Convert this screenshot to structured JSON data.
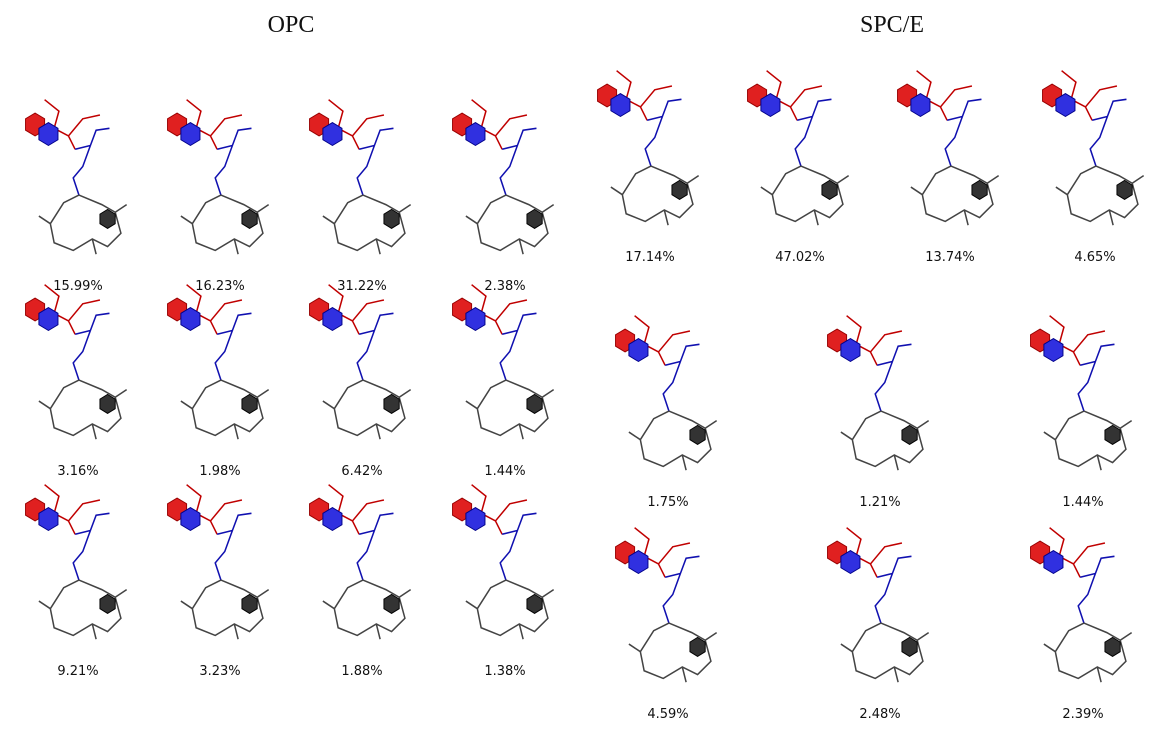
{
  "panels": [
    {
      "title": "OPC",
      "labels": [
        "15.99%",
        "16.23%",
        "31.22%",
        "2.38%",
        "3.16%",
        "1.98%",
        "6.42%",
        "1.44%",
        "9.21%",
        "3.23%",
        "1.88%",
        "1.38%"
      ]
    },
    {
      "title": "SPC/E",
      "labels": [
        "17.14%",
        "47.02%",
        "13.74%",
        "4.65%",
        "1.75%",
        "1.21%",
        "1.44%",
        "4.59%",
        "2.48%",
        "2.39%"
      ]
    }
  ]
}
